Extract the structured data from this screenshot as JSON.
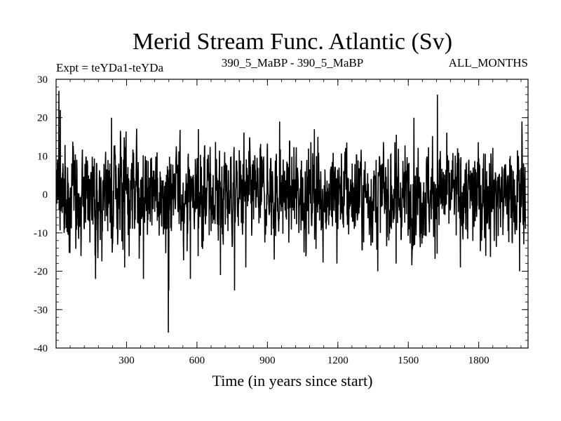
{
  "chart_data": {
    "type": "line",
    "title": "Merid Stream Func. Atlantic (Sv)",
    "subtitle_left": "Expt = teYDa1-teYDa",
    "subtitle_center": "390_5_MaBP - 390_5_MaBP",
    "subtitle_right": "ALL_MONTHS",
    "xlabel": "Time (in years since start)",
    "ylabel": "",
    "xlim": [
      0,
      2010
    ],
    "ylim": [
      -40,
      30
    ],
    "xticks_major": [
      300,
      600,
      900,
      1200,
      1500,
      1800
    ],
    "xticks_minor_step": 60,
    "yticks_major": [
      -40,
      -30,
      -20,
      -10,
      0,
      10,
      20,
      30
    ],
    "yticks_minor_step": 2,
    "grid": false,
    "series": [
      {
        "color": "#000000",
        "sample_step": 1,
        "x_start": 1,
        "baseline": 0,
        "noise_amplitude": 6,
        "peaks": [
          {
            "x": 12,
            "y": 27
          },
          {
            "x": 18,
            "y": 22
          },
          {
            "x": 34,
            "y": -10
          },
          {
            "x": 168,
            "y": -22
          },
          {
            "x": 236,
            "y": 20
          },
          {
            "x": 292,
            "y": -19
          },
          {
            "x": 372,
            "y": -22
          },
          {
            "x": 478,
            "y": -36
          },
          {
            "x": 480,
            "y": -25
          },
          {
            "x": 572,
            "y": -22
          },
          {
            "x": 606,
            "y": 17
          },
          {
            "x": 700,
            "y": -21
          },
          {
            "x": 760,
            "y": -25
          },
          {
            "x": 808,
            "y": -19
          },
          {
            "x": 952,
            "y": 19
          },
          {
            "x": 1100,
            "y": 17
          },
          {
            "x": 1196,
            "y": -18
          },
          {
            "x": 1370,
            "y": -20
          },
          {
            "x": 1448,
            "y": -18
          },
          {
            "x": 1524,
            "y": 20
          },
          {
            "x": 1624,
            "y": 26
          },
          {
            "x": 1722,
            "y": -19
          },
          {
            "x": 1974,
            "y": -20
          },
          {
            "x": 1984,
            "y": 19
          },
          {
            "x": 1992,
            "y": -13
          }
        ]
      }
    ]
  }
}
